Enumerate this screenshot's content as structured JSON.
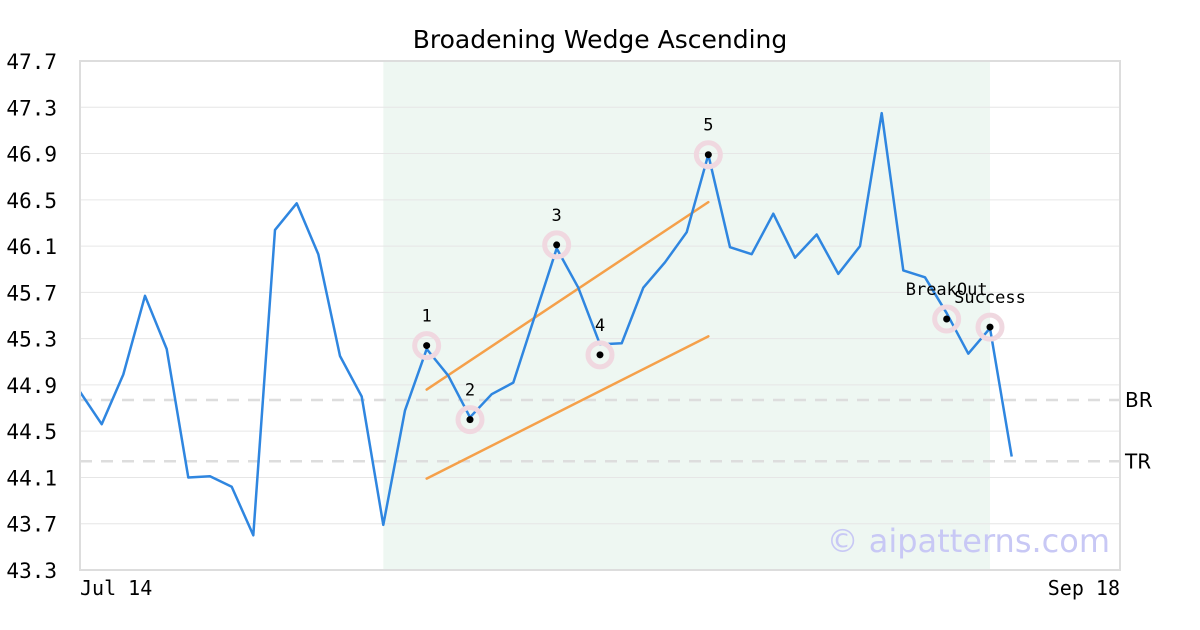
{
  "chart_data": {
    "type": "line",
    "title": "Broadening Wedge Ascending",
    "xlabel": "",
    "ylabel": "",
    "ylim": [
      43.3,
      47.7
    ],
    "xlim": [
      0,
      48
    ],
    "grid": true,
    "y_ticks": [
      "43.3",
      "43.7",
      "44.1",
      "44.5",
      "44.9",
      "45.3",
      "45.7",
      "46.1",
      "46.5",
      "46.9",
      "47.3",
      "47.7"
    ],
    "x_tick_labels": [
      {
        "x": 0,
        "label": "Jul 14"
      },
      {
        "x": 48,
        "label": "Sep 18"
      }
    ],
    "highlight_region": {
      "x_start": 14,
      "x_end": 42
    },
    "series": [
      {
        "values": [
          44.84,
          44.56,
          44.99,
          45.67,
          45.21,
          44.1,
          44.11,
          44.02,
          43.6,
          46.24,
          46.47,
          46.03,
          45.15,
          44.8,
          43.69,
          44.68,
          45.21,
          44.98,
          44.62,
          44.82,
          44.92,
          45.5,
          46.08,
          45.74,
          45.25,
          45.26,
          45.74,
          45.96,
          46.22,
          46.89,
          46.09,
          46.03,
          46.38,
          46.0,
          46.2,
          45.86,
          46.1,
          47.25,
          45.89,
          45.83,
          45.52,
          45.17,
          45.39,
          44.28
        ]
      }
    ],
    "pattern_points": [
      {
        "label": "1",
        "x": 16,
        "y": 45.24
      },
      {
        "label": "2",
        "x": 18,
        "y": 44.6
      },
      {
        "label": "3",
        "x": 22,
        "y": 46.11
      },
      {
        "label": "4",
        "x": 24,
        "y": 45.16
      },
      {
        "label": "5",
        "x": 29,
        "y": 46.89
      },
      {
        "label": "BreakOut",
        "x": 40,
        "y": 45.47
      },
      {
        "label": "Success",
        "x": 42,
        "y": 45.4
      }
    ],
    "trend_lines": [
      {
        "x1": 16,
        "y1": 44.86,
        "x2": 29,
        "y2": 46.48
      },
      {
        "x1": 16,
        "y1": 44.09,
        "x2": 29,
        "y2": 45.32
      }
    ],
    "reference_lines": [
      {
        "label": "BR",
        "y": 44.77
      },
      {
        "label": "TR",
        "y": 44.24
      }
    ],
    "watermark": "© aipatterns.com"
  },
  "colors": {
    "line": "#2f86e0",
    "trend": "#f5a04a",
    "highlight": "#eef7f2",
    "marker_ring": "#f0d8e0",
    "grid": "#e6e6e6",
    "ref": "#dddddd",
    "watermark": "#c8c8f5"
  }
}
